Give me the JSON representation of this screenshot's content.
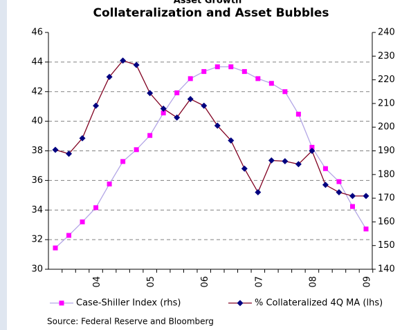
{
  "chart_data": {
    "type": "line",
    "subtitle": "Asset Growth",
    "title": "Collateralization and Asset Bubbles",
    "categories": [
      null,
      null,
      null,
      "04",
      null,
      null,
      null,
      "05",
      null,
      null,
      null,
      "06",
      null,
      null,
      null,
      "07",
      null,
      null,
      null,
      "08",
      null,
      null,
      null,
      "09"
    ],
    "series": [
      {
        "name": "Case-Shiller Index (rhs)",
        "axis": "y2",
        "color": "#ff00ff",
        "line_color": "#b3a6e6",
        "marker": "square",
        "values": [
          149,
          154.3,
          160,
          166,
          176,
          185.5,
          190.5,
          196.5,
          206,
          214.5,
          220.5,
          223.5,
          225.5,
          225.5,
          223.5,
          220.5,
          218.5,
          215,
          205.5,
          191.5,
          182.5,
          177,
          166.5,
          157
        ]
      },
      {
        "name": "% Collateralized 4Q MA (lhs)",
        "color": "#000080",
        "line_color": "#800020",
        "marker": "diamond",
        "values": [
          38.07,
          37.8,
          38.85,
          41.05,
          43.0,
          44.1,
          43.8,
          41.9,
          40.85,
          40.25,
          41.5,
          41.05,
          39.7,
          38.7,
          36.8,
          35.2,
          37.35,
          37.3,
          37.1,
          38.0,
          35.7,
          35.2,
          34.95,
          34.95
        ]
      }
    ],
    "ylim": [
      30,
      46
    ],
    "yticks": [
      30,
      32,
      34,
      36,
      38,
      40,
      42,
      44,
      46
    ],
    "y2lim": [
      140,
      240
    ],
    "y2ticks": [
      140,
      150,
      160,
      170,
      180,
      190,
      200,
      210,
      220,
      230,
      240
    ],
    "grid": true,
    "legend": "bottom",
    "source": "Source: Federal Reserve and Bloomberg"
  }
}
